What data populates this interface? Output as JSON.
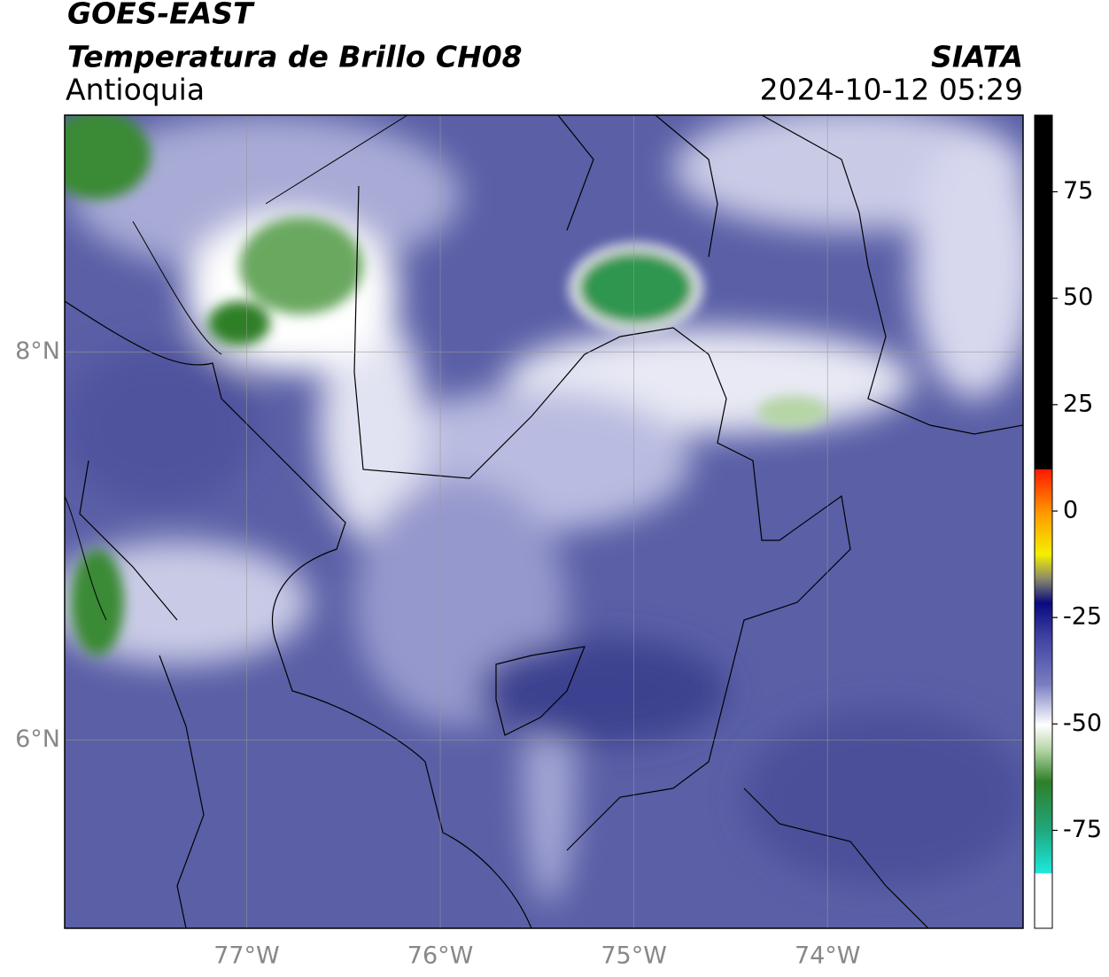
{
  "header": {
    "title": "GOES-EAST",
    "subtitle": "Temperatura de Brillo CH08",
    "region": "Antioquia",
    "source": "SIATA",
    "timestamp": "2024-10-12 05:29"
  },
  "map": {
    "lon_range": [
      -77.94,
      -72.99
    ],
    "lat_range": [
      5.03,
      9.22
    ],
    "lon_ticks": [
      {
        "value": -77,
        "label": "77°W"
      },
      {
        "value": -76,
        "label": "76°W"
      },
      {
        "value": -75,
        "label": "75°W"
      },
      {
        "value": -74,
        "label": "74°W"
      }
    ],
    "lat_ticks": [
      {
        "value": 8,
        "label": "8°N"
      },
      {
        "value": 6,
        "label": "6°N"
      }
    ]
  },
  "colorbar": {
    "range": [
      -98,
      93
    ],
    "ticks": [
      75,
      50,
      25,
      0,
      -25,
      -50,
      -75
    ]
  }
}
